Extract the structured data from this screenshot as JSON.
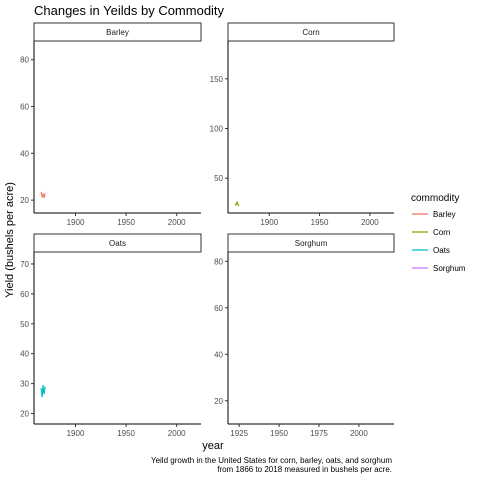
{
  "chart_data": {
    "type": "line",
    "title": "Changes in Yeilds by Commodity",
    "xlabel": "year",
    "ylabel": "Yield (bushels per acre)",
    "caption_lines": [
      "Yeild growth in the United States for corn, barley, oats, and sorghum",
      "from 1866 to 2018 measured in bushels per acre."
    ],
    "legend": {
      "title": "commodity",
      "position": "right"
    },
    "grid": false,
    "facets": [
      {
        "name": "Barley",
        "color": "#F8766D",
        "xlim": [
          1859,
          2024
        ],
        "ylim": [
          14.5,
          88
        ],
        "xticks": [
          1900,
          1950,
          2000
        ],
        "yticks": [
          20,
          40,
          60,
          80
        ],
        "x": [
          1866,
          1867,
          1868,
          1869,
          1870
        ],
        "y": [
          23.5,
          21.5,
          22.5,
          21.0,
          23.0
        ]
      },
      {
        "name": "Corn",
        "color": "#7CAE00",
        "xlim": [
          1859,
          2024
        ],
        "ylim": [
          15,
          188
        ],
        "xticks": [
          1900,
          1950,
          2000
        ],
        "yticks": [
          50,
          100,
          150
        ],
        "x": [
          1866,
          1867,
          1868,
          1869,
          1870
        ],
        "y": [
          24.3,
          23.0,
          26.0,
          23.5,
          22.0
        ]
      },
      {
        "name": "Oats",
        "color": "#00BFC4",
        "xlim": [
          1859,
          2024
        ],
        "ylim": [
          16.5,
          74
        ],
        "xticks": [
          1900,
          1950,
          2000
        ],
        "yticks": [
          20,
          30,
          40,
          50,
          60,
          70
        ],
        "x": [
          1866,
          1867,
          1868,
          1869,
          1870
        ],
        "y": [
          28.5,
          25.5,
          29.5,
          26.5,
          29.0
        ]
      },
      {
        "name": "Sorghum",
        "color": "#C77CFF",
        "xlim": [
          1918,
          2022
        ],
        "ylim": [
          10,
          84
        ],
        "xticks": [
          1925,
          1950,
          1975,
          2000
        ],
        "yticks": [
          20,
          40,
          60,
          80
        ],
        "x": [],
        "y": []
      }
    ]
  }
}
